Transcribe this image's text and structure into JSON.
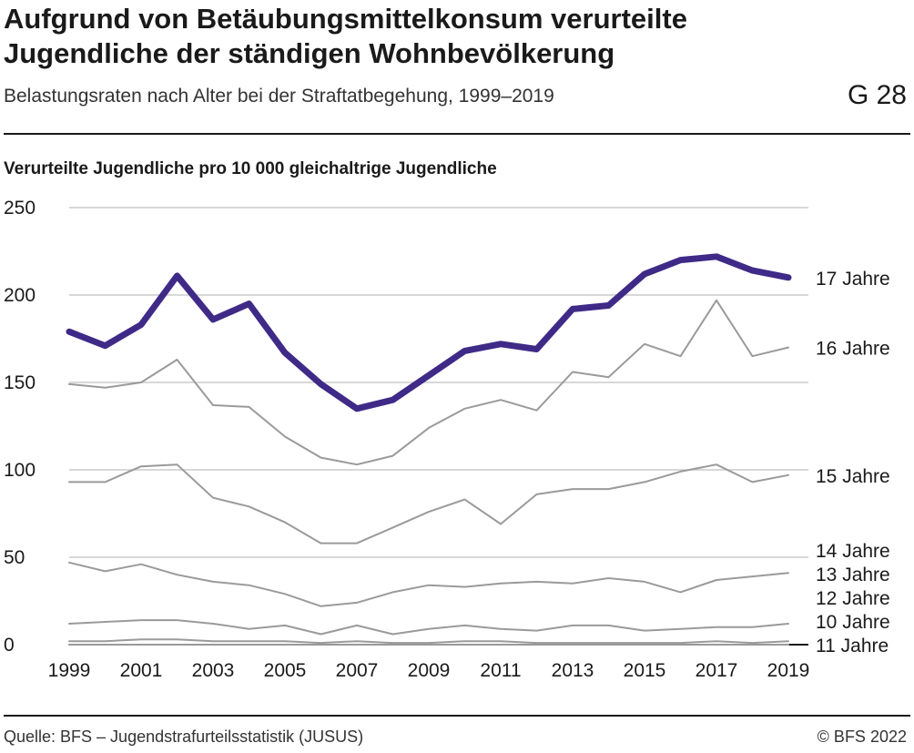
{
  "header": {
    "title_line1": "Aufgrund von Betäubungsmittelkonsum verurteilte",
    "title_line2": "Jugendliche der ständigen Wohnbevölkerung",
    "subtitle": "Belastungsraten nach Alter bei der Straftatbegehung, 1999–2019",
    "graphic_id": "G 28"
  },
  "footer": {
    "source": "Quelle: BFS – Jugendstrafurteilsstatistik (JUSUS)",
    "copyright": "© BFS 2022"
  },
  "chart_data": {
    "type": "line",
    "title": "Aufgrund von Betäubungsmittelkonsum verurteilte Jugendliche der ständigen Wohnbevölkerung",
    "subtitle": "Belastungsraten nach Alter bei der Straftatbegehung, 1999–2019",
    "xlabel": "",
    "ylabel": "Verurteilte Jugendliche pro 10 000 gleichaltrige Jugendliche",
    "x": [
      1999,
      2000,
      2001,
      2002,
      2003,
      2004,
      2005,
      2006,
      2007,
      2008,
      2009,
      2010,
      2011,
      2012,
      2013,
      2014,
      2015,
      2016,
      2017,
      2018,
      2019
    ],
    "x_tick_labels": [
      "1999",
      "2001",
      "2003",
      "2005",
      "2007",
      "2009",
      "2011",
      "2013",
      "2015",
      "2017",
      "2019"
    ],
    "y_ticks": [
      0,
      50,
      100,
      150,
      200,
      250
    ],
    "ylim": [
      0,
      250
    ],
    "grid": true,
    "legend": "direct labels at right end of lines",
    "colors": {
      "highlight": "#3f2a87",
      "other": "#9a9a9a",
      "grid": "#cccccc"
    },
    "series": [
      {
        "name": "17 Jahre",
        "highlight": true,
        "values": [
          179,
          171,
          183,
          211,
          186,
          195,
          167,
          149,
          135,
          140,
          154,
          168,
          172,
          169,
          192,
          194,
          212,
          220,
          222,
          214,
          210
        ]
      },
      {
        "name": "16 Jahre",
        "highlight": false,
        "values": [
          149,
          147,
          150,
          163,
          137,
          136,
          119,
          107,
          103,
          108,
          124,
          135,
          140,
          134,
          156,
          153,
          172,
          165,
          197,
          165,
          170
        ]
      },
      {
        "name": "15 Jahre",
        "highlight": false,
        "values": [
          93,
          93,
          102,
          103,
          84,
          79,
          70,
          58,
          58,
          67,
          76,
          83,
          69,
          86,
          89,
          89,
          93,
          99,
          103,
          93,
          97
        ]
      },
      {
        "name": "14 Jahre",
        "highlight": false,
        "values": [
          47,
          42,
          46,
          40,
          36,
          34,
          29,
          22,
          24,
          30,
          34,
          33,
          35,
          36,
          35,
          38,
          36,
          30,
          37,
          39,
          41
        ]
      },
      {
        "name": "13 Jahre",
        "highlight": false,
        "values": [
          12,
          13,
          14,
          14,
          12,
          9,
          11,
          6,
          11,
          6,
          9,
          11,
          9,
          8,
          11,
          11,
          8,
          9,
          10,
          10,
          12
        ]
      },
      {
        "name": "12 Jahre",
        "highlight": false,
        "values": [
          2,
          2,
          3,
          3,
          2,
          2,
          2,
          1,
          2,
          1,
          1,
          2,
          2,
          1,
          1,
          1,
          1,
          1,
          2,
          1,
          2
        ]
      },
      {
        "name": "10 Jahre",
        "highlight": false,
        "values": [
          0,
          0,
          0,
          0,
          0,
          0,
          0,
          0,
          0,
          0,
          0,
          0,
          0,
          0,
          0,
          0,
          0,
          0,
          0,
          0,
          0
        ]
      },
      {
        "name": "11 Jahre",
        "highlight": false,
        "values": [
          0,
          0,
          0,
          0,
          0,
          0,
          0,
          0,
          0,
          0,
          0,
          0,
          0,
          0,
          0,
          0,
          0,
          0,
          0,
          0,
          0
        ]
      }
    ]
  }
}
